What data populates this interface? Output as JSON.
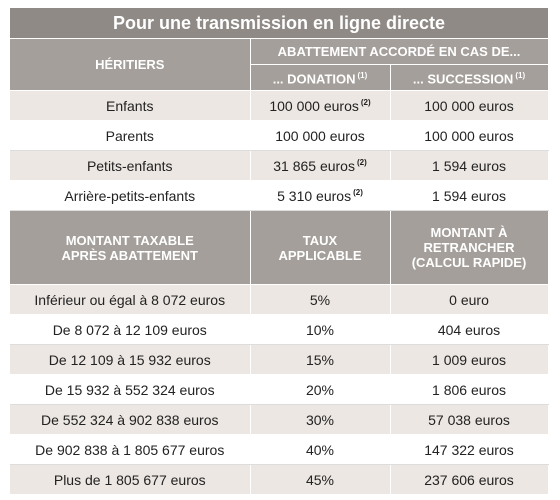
{
  "title": "Pour une transmission en ligne directe",
  "table1": {
    "header": {
      "heirs": "HÉRITIERS",
      "group": "ABATTEMENT ACCORDÉ EN CAS DE...",
      "donation": "... DONATION",
      "donation_note": "(1)",
      "succession": "... SUCCESSION",
      "succession_note": "(1)"
    },
    "rows": [
      {
        "heir": "Enfants",
        "donation": "100 000 euros",
        "note": "(2)",
        "succession": "100 000 euros"
      },
      {
        "heir": "Parents",
        "donation": "100 000 euros",
        "succession": "100 000 euros"
      },
      {
        "heir": "Petits-enfants",
        "donation": "31 865 euros",
        "note": "(2)",
        "succession": "1 594 euros"
      },
      {
        "heir": "Arrière-petits-enfants",
        "donation": "5 310 euros",
        "note": "(2)",
        "succession": "1 594 euros"
      }
    ]
  },
  "table2": {
    "header": [
      "MONTANT TAXABLE APRÈS ABATTEMENT",
      "TAUX APPLICABLE",
      "MONTANT À RETRANCHER (CALCUL RAPIDE)"
    ],
    "rows": [
      [
        "Inférieur ou égal à 8 072 euros",
        "5%",
        "0 euro"
      ],
      [
        "De 8 072 à 12 109 euros",
        "10%",
        "404 euros"
      ],
      [
        "De 12 109 à 15 932 euros",
        "15%",
        "1 009 euros"
      ],
      [
        "De 15 932 à 552 324 euros",
        "20%",
        "1 806 euros"
      ],
      [
        "De 552 324 à 902 838 euros",
        "30%",
        "57 038 euros"
      ],
      [
        "De 902 838 à 1 805 677 euros",
        "40%",
        "147 322 euros"
      ],
      [
        "Plus de 1 805 677 euros",
        "45%",
        "237 606 euros"
      ]
    ]
  }
}
